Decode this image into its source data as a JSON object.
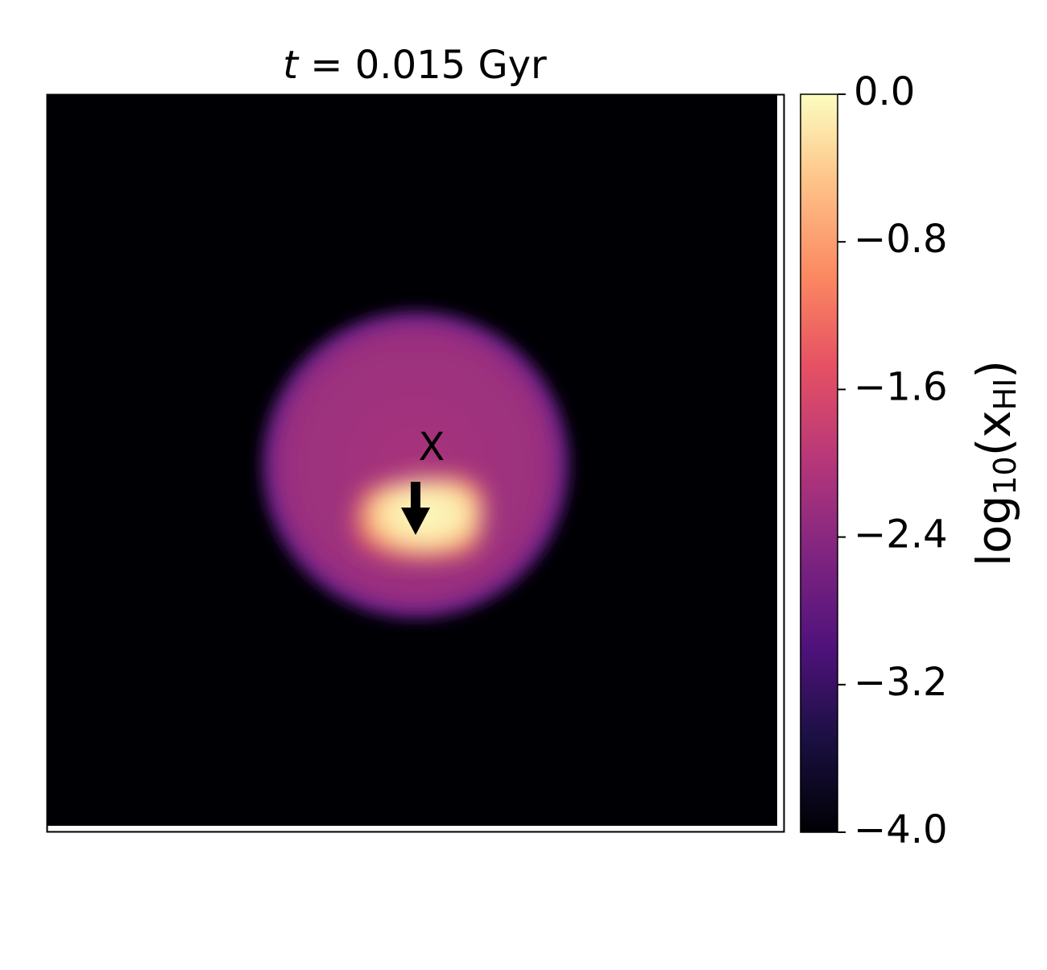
{
  "chart_data": {
    "type": "heatmap",
    "title": [
      {
        "text": "t",
        "italic": true
      },
      {
        "text": " = 0.015 Gyr"
      }
    ],
    "annotation": "X",
    "colormap": "magma",
    "clim": [
      -4.0,
      0.0
    ],
    "colorbar_ticks": [
      {
        "value": -4.0,
        "label": "−4.0"
      },
      {
        "value": -3.2,
        "label": "−3.2"
      },
      {
        "value": -2.4,
        "label": "−2.4"
      },
      {
        "value": -1.6,
        "label": "−1.6"
      },
      {
        "value": -0.8,
        "label": "−0.8"
      },
      {
        "value": 0.0,
        "label": "0.0"
      }
    ],
    "colorbar_label": [
      {
        "text": "log"
      },
      {
        "text": "10",
        "sub": true
      },
      {
        "text": "(x"
      },
      {
        "text": "HI",
        "sub": true
      },
      {
        "text": ")"
      }
    ]
  }
}
